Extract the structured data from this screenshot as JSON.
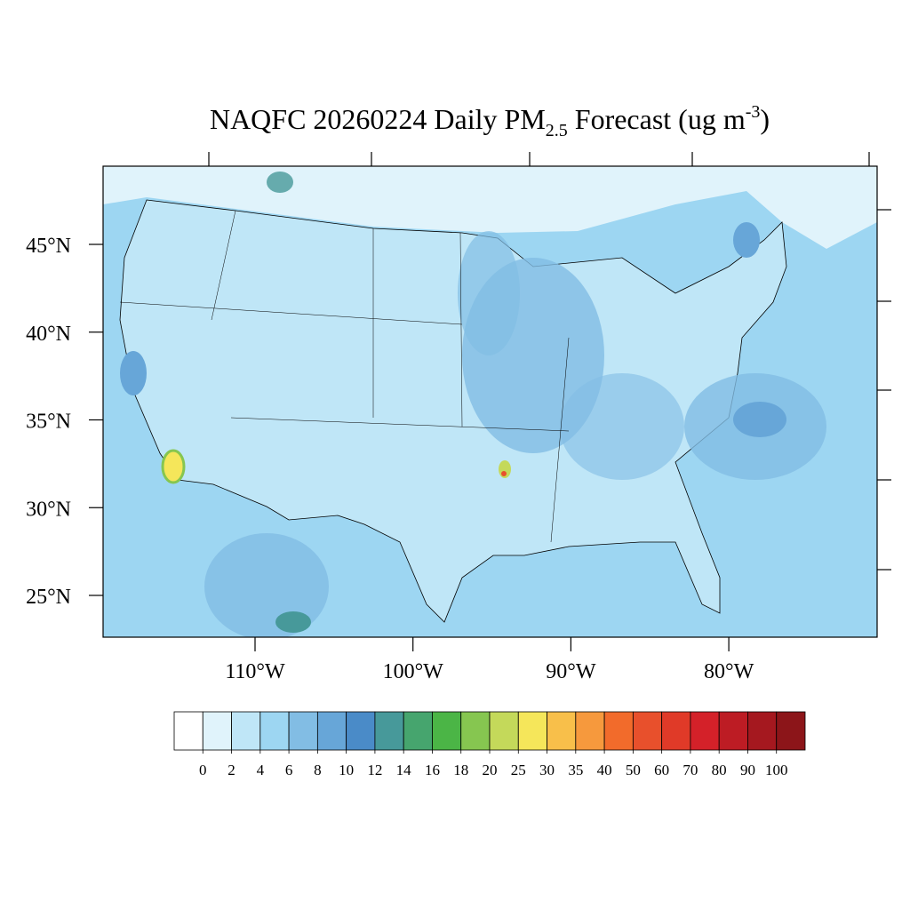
{
  "title": {
    "main": "NAQFC 20260224 Daily PM",
    "sub": "2.5",
    "mid": " Forecast (ug m",
    "sup": "-3",
    "end": ")"
  },
  "map": {
    "lat_ticks": [
      {
        "value": 45,
        "label": "45°N"
      },
      {
        "value": 40,
        "label": "40°N"
      },
      {
        "value": 35,
        "label": "35°N"
      },
      {
        "value": 30,
        "label": "30°N"
      },
      {
        "value": 25,
        "label": "25°N"
      }
    ],
    "lon_ticks": [
      {
        "value": -110,
        "label": "110°W"
      },
      {
        "value": -100,
        "label": "100°W"
      },
      {
        "value": -90,
        "label": "90°W"
      },
      {
        "value": -80,
        "label": "80°W"
      }
    ]
  },
  "colorbar": {
    "levels": [
      0,
      2,
      4,
      6,
      8,
      10,
      12,
      14,
      16,
      18,
      20,
      25,
      30,
      35,
      40,
      50,
      60,
      70,
      80,
      90,
      100
    ],
    "colors": [
      "#ffffff",
      "#e0f3fb",
      "#bfe6f7",
      "#9dd6f2",
      "#82bde4",
      "#67a6d8",
      "#4a8bc8",
      "#47999a",
      "#46a56e",
      "#4bb546",
      "#86c650",
      "#c4d95a",
      "#f5e65a",
      "#f8bf4a",
      "#f6993d",
      "#f26b2b",
      "#e8502c",
      "#e03a28",
      "#d42129",
      "#bd1c24",
      "#a5181f",
      "#8c1519"
    ]
  }
}
